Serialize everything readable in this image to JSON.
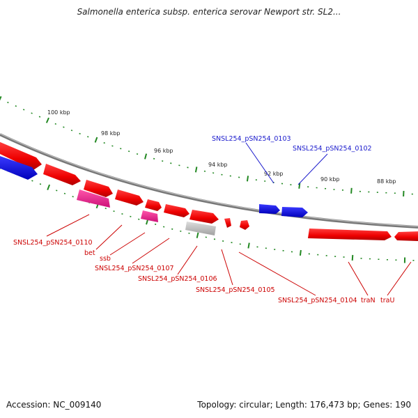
{
  "title": "Salmonella enterica subsp. enterica serovar Newport str. SL2...",
  "footer": {
    "accession": "Accession: NC_009140",
    "summary": "Topology: circular; Length: 176,473 bp; Genes: 190"
  },
  "colors": {
    "forward_gene": "#ff0000",
    "reverse_gene": "#0000ee",
    "mobile_element": "#ee2288",
    "pseudo": "#bbbbbb",
    "backbone": "#888888",
    "tick": "#228822",
    "label_red": "#cc0000",
    "label_blue": "#1a1acc"
  },
  "ticks": [
    {
      "label": "100 kbp"
    },
    {
      "label": "98 kbp"
    },
    {
      "label": "96 kbp"
    },
    {
      "label": "94 kbp"
    },
    {
      "label": "92 kbp"
    },
    {
      "label": "90 kbp"
    },
    {
      "label": "88 kbp"
    }
  ],
  "gene_labels": [
    {
      "text": "SNSL254_pSN254_0103",
      "color": "blue"
    },
    {
      "text": "SNSL254_pSN254_0102",
      "color": "blue"
    },
    {
      "text": "SNSL254_pSN254_0110",
      "color": "red"
    },
    {
      "text": "bet",
      "color": "red"
    },
    {
      "text": "ssb",
      "color": "red"
    },
    {
      "text": "SNSL254_pSN254_0107",
      "color": "red"
    },
    {
      "text": "SNSL254_pSN254_0106",
      "color": "red"
    },
    {
      "text": "SNSL254_pSN254_0105",
      "color": "red"
    },
    {
      "text": "SNSL254_pSN254_0104",
      "color": "red"
    },
    {
      "text": "traN",
      "color": "red"
    },
    {
      "text": "traU",
      "color": "red"
    }
  ]
}
